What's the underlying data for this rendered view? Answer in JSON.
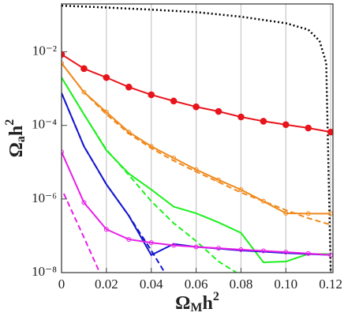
{
  "chart_data": {
    "type": "line",
    "xlabel": {
      "base": "Ω",
      "sub": "M",
      "mid": "h",
      "sup": "2"
    },
    "ylabel": {
      "base": "Ω",
      "sub": "a",
      "mid": "h",
      "sup": "2"
    },
    "xlim": [
      0,
      0.121
    ],
    "ylim": [
      1e-08,
      0.2
    ],
    "log_y": true,
    "grid_x": true,
    "xticks": [
      0,
      0.02,
      0.04,
      0.06,
      0.08,
      {
        "value": 0.1,
        "label": "0.10"
      },
      0.12
    ],
    "yticks": [
      {
        "value": 0.01,
        "label": "10⁻²"
      },
      {
        "value": 0.0001,
        "label": "10⁻⁴"
      },
      {
        "value": 1e-06,
        "label": "10⁻⁶"
      },
      {
        "value": 1e-08,
        "label": "10⁻⁸"
      }
    ],
    "series": [
      {
        "color": "#000000",
        "style": "dotted",
        "x": [
          0,
          0.02,
          0.04,
          0.06,
          0.08,
          0.1,
          0.11,
          0.115,
          0.118,
          0.12
        ],
        "values": [
          0.18,
          0.16,
          0.14,
          0.12,
          0.09,
          0.06,
          0.04,
          0.02,
          0.005,
          1e-08
        ]
      },
      {
        "color": "#e8141c",
        "style": "solid",
        "marker": "circle",
        "x": [
          0,
          0.01,
          0.02,
          0.03,
          0.04,
          0.05,
          0.06,
          0.07,
          0.08,
          0.09,
          0.1,
          0.11,
          0.12
        ],
        "values": [
          0.0085,
          0.0035,
          0.002,
          0.0011,
          0.00068,
          0.00046,
          0.00032,
          0.00024,
          0.00017,
          0.00013,
          0.000105,
          8.5e-05,
          6.6e-05
        ]
      },
      {
        "color": "#f08a1c",
        "style": "solid",
        "marker": "open",
        "x": [
          0,
          0.01,
          0.02,
          0.03,
          0.04,
          0.05,
          0.06,
          0.07,
          0.08,
          0.09,
          0.1,
          0.11,
          0.12
        ],
        "values": [
          0.0049,
          0.0008,
          0.00023,
          6.6e-05,
          2.7e-05,
          1.3e-05,
          6.3e-06,
          3.3e-06,
          1.8e-06,
          8.7e-07,
          4.1e-07,
          4e-07,
          4e-07
        ]
      },
      {
        "color": "#f08a1c",
        "style": "dashed",
        "x": [
          0,
          0.01,
          0.02,
          0.03,
          0.04,
          0.05,
          0.06,
          0.07,
          0.08,
          0.09,
          0.1,
          0.11,
          0.12
        ],
        "values": [
          0.0049,
          0.0008,
          0.0002,
          6e-05,
          2.4e-05,
          1.1e-05,
          5.5e-06,
          2.9e-06,
          1.5e-06,
          8.7e-07,
          5e-07,
          3e-07,
          2e-07
        ]
      },
      {
        "color": "#1ef01e",
        "style": "solid",
        "x": [
          0,
          0.01,
          0.02,
          0.03,
          0.04,
          0.05,
          0.06,
          0.07,
          0.08,
          0.09,
          0.1,
          0.11,
          0.12
        ],
        "values": [
          0.002,
          0.0002,
          2.1e-05,
          4.9e-06,
          1.8e-06,
          6.2e-07,
          4.1e-07,
          2.3e-07,
          1.2e-07,
          1.9e-08,
          2e-08,
          3.2e-08,
          3.2e-08
        ]
      },
      {
        "color": "#1ef01e",
        "style": "dashed",
        "x": [
          0,
          0.01,
          0.02,
          0.03,
          0.04,
          0.05,
          0.06,
          0.07,
          0.078
        ],
        "values": [
          0.002,
          0.0002,
          2.2e-05,
          4.5e-06,
          8.7e-07,
          2.2e-07,
          7.2e-08,
          2e-08,
          1e-08
        ]
      },
      {
        "color": "#1515d0",
        "style": "solid",
        "x": [
          0,
          0.01,
          0.02,
          0.03,
          0.04,
          0.05,
          0.06,
          0.07,
          0.08,
          0.09,
          0.1,
          0.11,
          0.12
        ],
        "values": [
          0.00076,
          2.7e-05,
          2.5e-06,
          3.5e-07,
          3e-08,
          6e-08,
          5e-08,
          4.5e-08,
          4e-08,
          3.7e-08,
          3.4e-08,
          3.2e-08,
          3e-08
        ]
      },
      {
        "color": "#1515d0",
        "style": "dashed",
        "x": [
          0,
          0.01,
          0.02,
          0.03,
          0.04,
          0.046
        ],
        "values": [
          0.00076,
          2.7e-05,
          2.5e-06,
          3.5e-07,
          4e-08,
          1e-08
        ]
      },
      {
        "color": "#e81ee8",
        "style": "solid",
        "marker": "open",
        "x": [
          0,
          0.01,
          0.02,
          0.03,
          0.04,
          0.05,
          0.06,
          0.07,
          0.08,
          0.09,
          0.1,
          0.11,
          0.12
        ],
        "values": [
          1.9e-05,
          8e-07,
          1.5e-07,
          8e-08,
          6.5e-08,
          5.5e-08,
          5e-08,
          4.6e-08,
          4.2e-08,
          3.9e-08,
          3.6e-08,
          3.3e-08,
          3e-08
        ]
      },
      {
        "color": "#e81ee8",
        "style": "dashed",
        "x": [
          0.001,
          0.01,
          0.017
        ],
        "values": [
          1.4e-06,
          9e-08,
          1e-08
        ]
      }
    ]
  }
}
